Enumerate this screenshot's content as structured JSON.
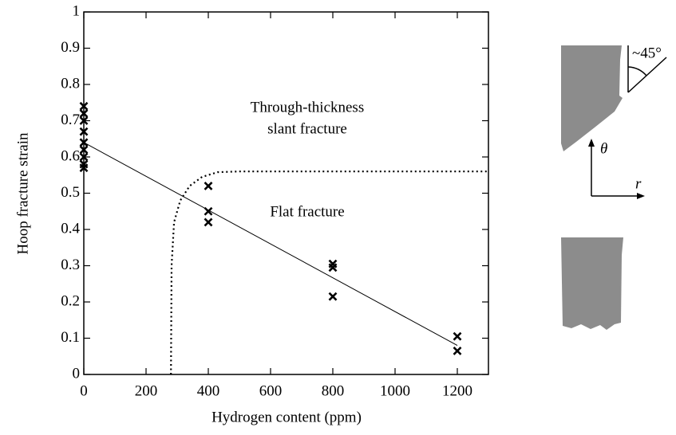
{
  "chart_data": {
    "type": "scatter",
    "xlabel": "Hydrogen content (ppm)",
    "ylabel": "Hoop fracture strain",
    "xlim": [
      0,
      1300
    ],
    "ylim": [
      0,
      1
    ],
    "xticks": [
      0,
      200,
      400,
      600,
      800,
      1000,
      1200
    ],
    "yticks": [
      0,
      0.1,
      0.2,
      0.3,
      0.4,
      0.5,
      0.6,
      0.7,
      0.8,
      0.9,
      1
    ],
    "series": [
      {
        "type": "scatter",
        "color": "#000000",
        "x": [
          0,
          0,
          0,
          0,
          0,
          0,
          0,
          0,
          0,
          400,
          400,
          400,
          800,
          800,
          800,
          1200,
          1200
        ],
        "values": [
          0.74,
          0.72,
          0.7,
          0.67,
          0.64,
          0.62,
          0.6,
          0.58,
          0.57,
          0.52,
          0.45,
          0.42,
          0.305,
          0.295,
          0.215,
          0.105,
          0.065
        ]
      },
      {
        "type": "line",
        "color": "#000000",
        "x": [
          0,
          1200
        ],
        "values": [
          0.64,
          0.08
        ]
      },
      {
        "type": "line",
        "style": "dotted",
        "color": "#000000",
        "x": [
          280,
          282,
          290,
          310,
          340,
          380,
          430,
          500,
          1300
        ],
        "values": [
          0,
          0.3,
          0.42,
          0.48,
          0.52,
          0.545,
          0.558,
          0.56,
          0.56
        ]
      }
    ],
    "annotations": [
      "Through-thickness",
      "slant fracture",
      "Flat fracture"
    ]
  },
  "diagram": {
    "angle": "~45°",
    "theta": "θ",
    "r": "r"
  }
}
